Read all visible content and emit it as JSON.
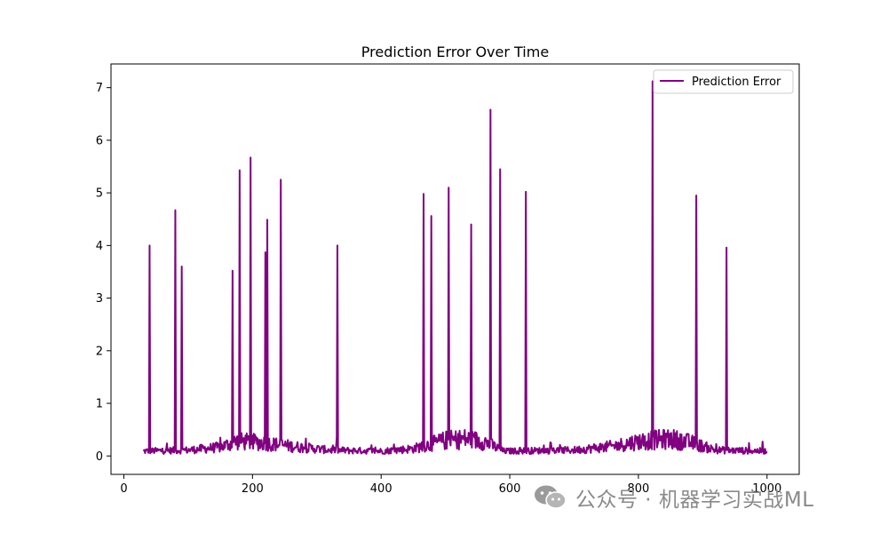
{
  "chart_data": {
    "type": "line",
    "title": "Prediction Error Over Time",
    "xlabel": "",
    "ylabel": "",
    "xlim": [
      -20,
      1050
    ],
    "ylim": [
      -0.35,
      7.45
    ],
    "xticks": [
      0,
      200,
      400,
      600,
      800,
      1000
    ],
    "yticks": [
      0,
      1,
      2,
      3,
      4,
      5,
      6,
      7
    ],
    "grid": false,
    "legend_position": "top-right",
    "series": [
      {
        "name": "Prediction Error",
        "color": "#800080",
        "x_range": [
          30,
          1000
        ],
        "baseline": [
          {
            "x": 30,
            "y": 0.1
          },
          {
            "x": 100,
            "y": 0.12
          },
          {
            "x": 150,
            "y": 0.18
          },
          {
            "x": 175,
            "y": 0.3
          },
          {
            "x": 210,
            "y": 0.28
          },
          {
            "x": 260,
            "y": 0.2
          },
          {
            "x": 320,
            "y": 0.12
          },
          {
            "x": 400,
            "y": 0.1
          },
          {
            "x": 450,
            "y": 0.15
          },
          {
            "x": 500,
            "y": 0.32
          },
          {
            "x": 530,
            "y": 0.35
          },
          {
            "x": 560,
            "y": 0.3
          },
          {
            "x": 590,
            "y": 0.1
          },
          {
            "x": 700,
            "y": 0.12
          },
          {
            "x": 760,
            "y": 0.2
          },
          {
            "x": 800,
            "y": 0.3
          },
          {
            "x": 850,
            "y": 0.35
          },
          {
            "x": 880,
            "y": 0.28
          },
          {
            "x": 920,
            "y": 0.12
          },
          {
            "x": 1000,
            "y": 0.1
          }
        ],
        "spikes": [
          {
            "x": 40,
            "y": 4.0
          },
          {
            "x": 80,
            "y": 4.67
          },
          {
            "x": 90,
            "y": 3.6
          },
          {
            "x": 169,
            "y": 3.52
          },
          {
            "x": 180,
            "y": 5.43
          },
          {
            "x": 197,
            "y": 5.67
          },
          {
            "x": 220,
            "y": 3.87
          },
          {
            "x": 223,
            "y": 4.49
          },
          {
            "x": 244,
            "y": 5.25
          },
          {
            "x": 332,
            "y": 4.0
          },
          {
            "x": 466,
            "y": 4.98
          },
          {
            "x": 478,
            "y": 4.56
          },
          {
            "x": 505,
            "y": 5.1
          },
          {
            "x": 540,
            "y": 4.4
          },
          {
            "x": 570,
            "y": 6.58
          },
          {
            "x": 585,
            "y": 5.45
          },
          {
            "x": 625,
            "y": 5.02
          },
          {
            "x": 822,
            "y": 7.12
          },
          {
            "x": 890,
            "y": 4.95
          },
          {
            "x": 937,
            "y": 3.96
          }
        ]
      }
    ]
  },
  "watermark": {
    "icon": "wechat-icon",
    "text": "公众号 · 机器学习实战ML"
  }
}
